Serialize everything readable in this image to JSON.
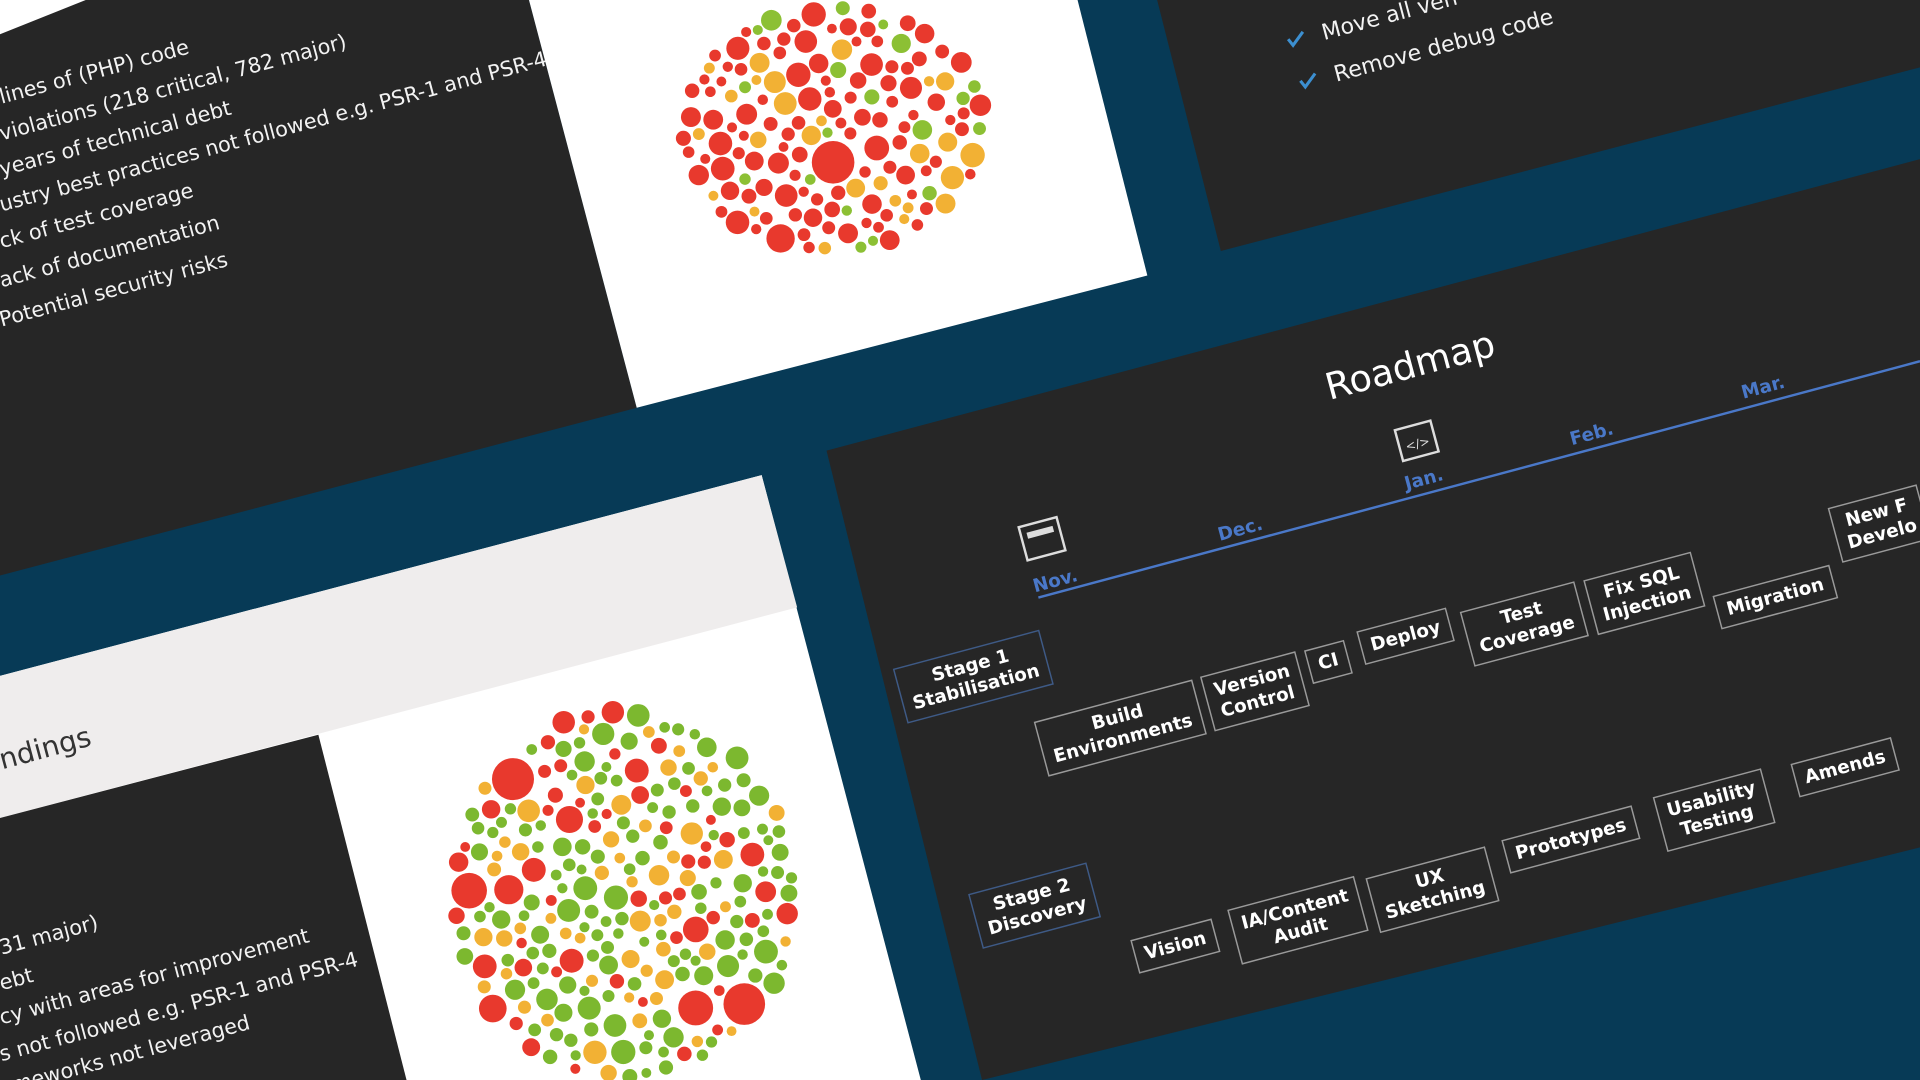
{
  "slide_issues": {
    "bullets": [
      "lines of (PHP) code",
      "violations (218 critical, 782 major)",
      "years of technical debt",
      "ustry best practices not followed e.g. PSR-1 and PSR-4",
      "ck of test coverage",
      "ack of documentation",
      "Potential security risks"
    ]
  },
  "slide_tasks": {
    "items": [
      "Move all ven",
      "Remove debug code"
    ]
  },
  "slide_findings": {
    "heading": "ndings",
    "bullets": [
      "31 major)",
      "ebt",
      "cy with areas for improvement",
      "s not followed e.g. PSR-1 and PSR-4",
      "ameworks not leveraged"
    ]
  },
  "roadmap": {
    "title": "Roadmap",
    "months": [
      "Nov.",
      "Dec.",
      "Jan.",
      "Feb.",
      "Mar."
    ],
    "stages": [
      {
        "label": [
          "Stage 1",
          "Stabilisation"
        ],
        "tasks": [
          [
            "Build",
            "Environments"
          ],
          [
            "Version",
            "Control"
          ],
          [
            "CI"
          ],
          [
            "Deploy"
          ],
          [
            "Test",
            "Coverage"
          ],
          [
            "Fix SQL",
            "Injection"
          ],
          [
            "Migration"
          ],
          [
            "New F",
            "Develo"
          ]
        ]
      },
      {
        "label": [
          "Stage 2",
          "Discovery"
        ],
        "tasks": [
          [
            "Vision"
          ],
          [
            "IA/Content",
            "Audit"
          ],
          [
            "UX",
            "Sketching"
          ],
          [
            "Prototypes"
          ],
          [
            "Usability",
            "Testing"
          ],
          [
            "Amends"
          ]
        ]
      }
    ]
  }
}
